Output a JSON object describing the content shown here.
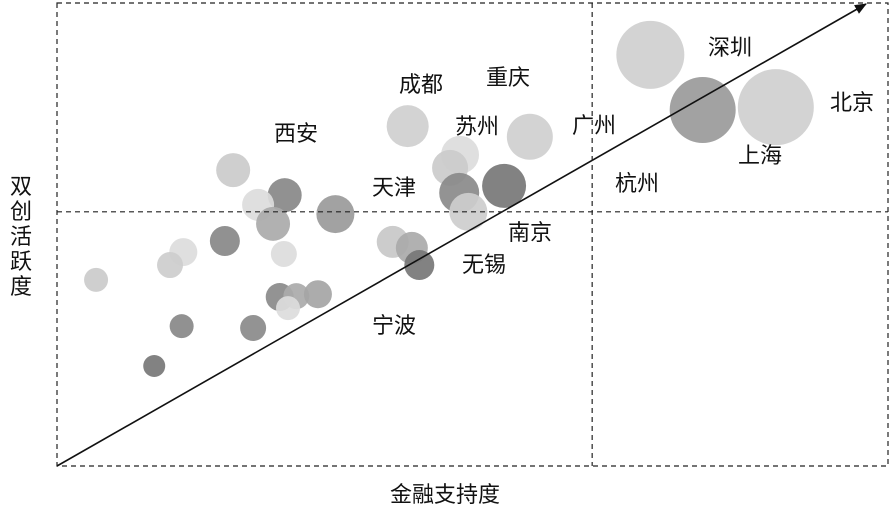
{
  "chart_data": {
    "type": "bubble",
    "x_label": "金融支持度",
    "y_label": "双创活跃度",
    "xlim": [
      0,
      100
    ],
    "ylim": [
      0,
      100
    ],
    "quadrant_lines": {
      "x": 64.4,
      "y": 54.9
    },
    "annotations": [
      "深圳",
      "北京",
      "上海",
      "成都",
      "重庆",
      "西安",
      "苏州",
      "广州",
      "天津",
      "杭州",
      "南京",
      "无锡",
      "宁波"
    ],
    "series": [
      {
        "x": [
          71.4,
          77.7,
          86.5,
          56.9,
          42.2,
          48.5,
          47.3,
          53.8,
          48.4,
          49.5,
          21.2,
          27.4,
          24.2,
          26.0,
          33.5,
          20.2,
          15.2,
          13.6,
          27.3,
          40.4,
          42.7,
          43.6,
          4.7,
          26.8,
          28.8,
          31.4,
          27.8,
          15.0,
          23.6,
          11.7
        ],
        "values": [
          88.8,
          76.9,
          77.5,
          71.1,
          73.4,
          67.2,
          64.4,
          60.5,
          59.0,
          54.9,
          63.9,
          58.5,
          56.4,
          52.3,
          54.4,
          48.6,
          46.2,
          43.4,
          45.8,
          48.4,
          47.1,
          43.4,
          40.2,
          36.5,
          36.7,
          37.1,
          34.1,
          30.2,
          29.8,
          21.6
        ],
        "sizes": [
          34,
          33,
          38,
          23,
          21,
          19,
          18,
          22,
          20,
          19,
          17,
          17,
          16,
          17,
          19,
          15,
          14,
          13,
          13,
          16,
          16,
          15,
          12,
          14,
          13,
          14,
          12,
          12,
          13,
          11
        ],
        "colors": [
          "#cfcfcf",
          "#9a9a9a",
          "#cfcfcf",
          "#cfcfcf",
          "#cfcfcf",
          "#dcdcdc",
          "#cbcbcb",
          "#777777",
          "#8a8a8a",
          "#cdcdcd",
          "#cbcbcb",
          "#888888",
          "#dcdcdc",
          "#aaaaaa",
          "#9a9a9a",
          "#888888",
          "#dcdcdc",
          "#cdcdcd",
          "#dcdcdc",
          "#c8c8c8",
          "#aaaaaa",
          "#777777",
          "#cbcbcb",
          "#8a8a8a",
          "#aaaaaa",
          "#a5a5a5",
          "#dcdcdc",
          "#888888",
          "#8a8a8a",
          "#777777"
        ]
      }
    ]
  }
}
